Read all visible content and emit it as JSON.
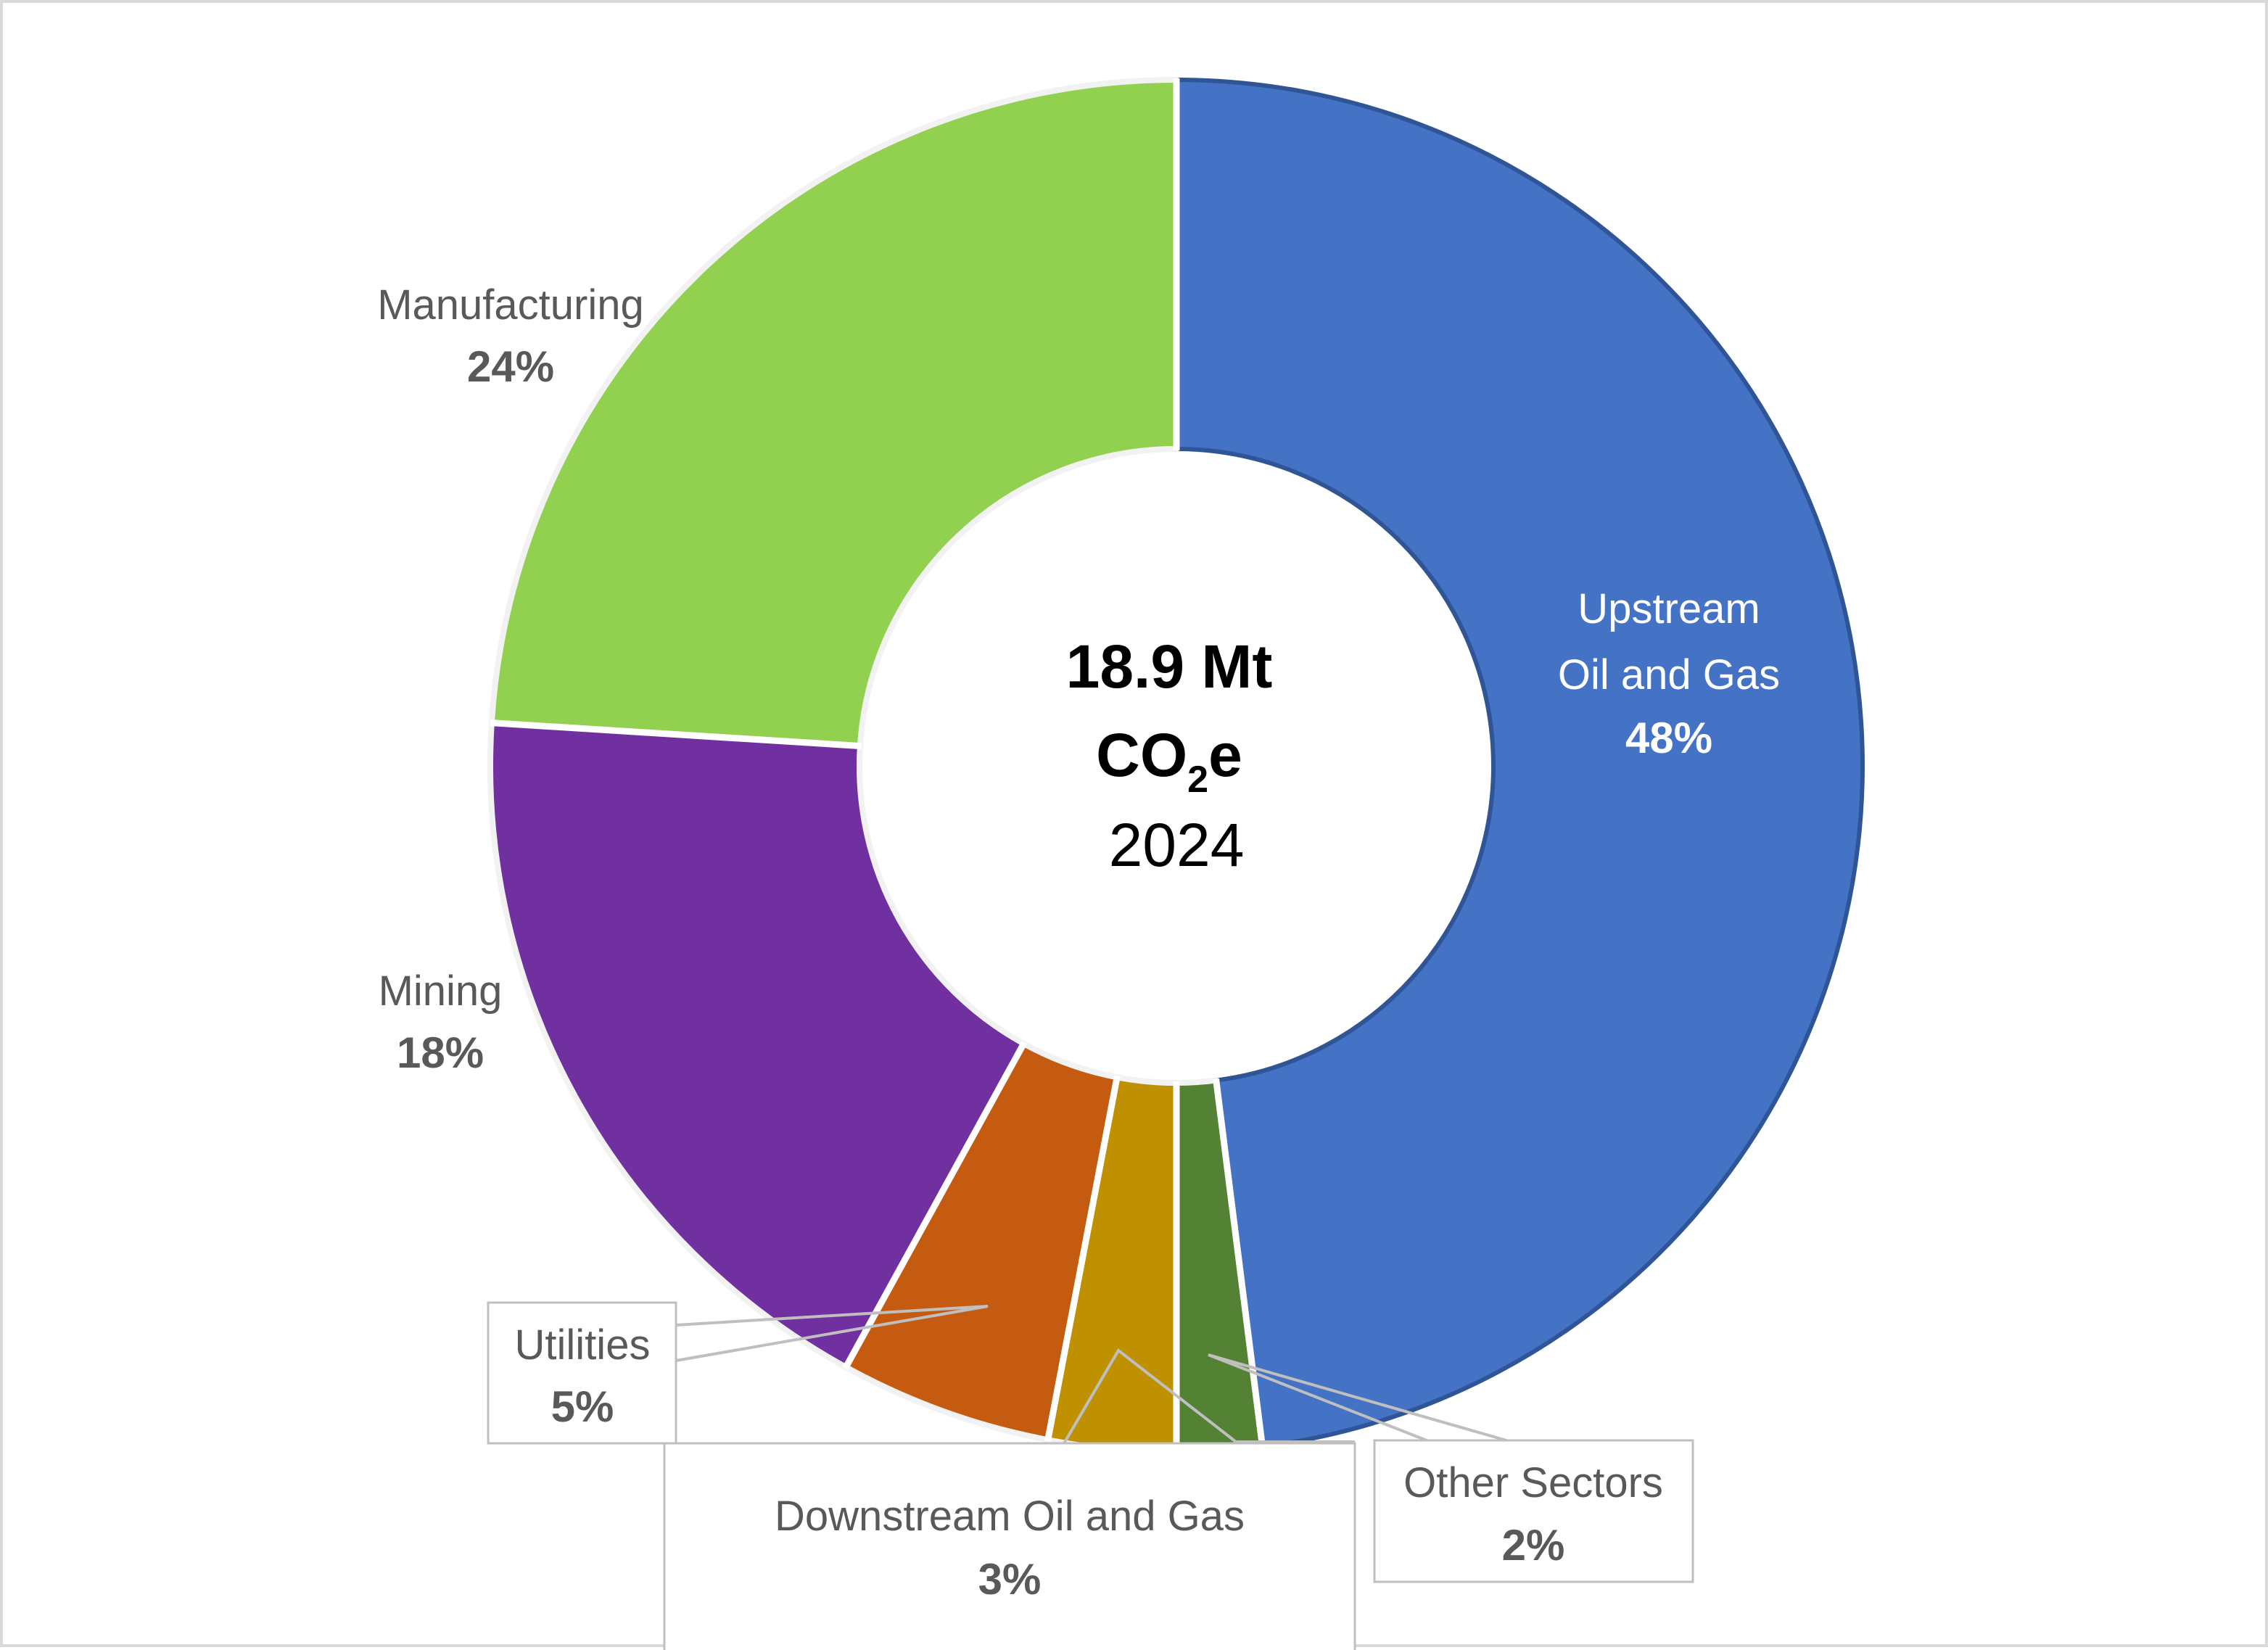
{
  "chart_data": {
    "type": "pie",
    "variant": "doughnut",
    "title": "",
    "center_label": {
      "line1": "18.9 Mt",
      "line2_main": "CO",
      "line2_sub": "2",
      "line2_end": "e",
      "line3": "2024"
    },
    "total": "18.9 Mt CO2e",
    "year": "2024",
    "unit": "%",
    "categories": [
      "Upstream Oil and Gas",
      "Other Sectors",
      "Downstream Oil and Gas",
      "Utilities",
      "Mining",
      "Manufacturing"
    ],
    "values": [
      48,
      2,
      3,
      5,
      18,
      24
    ],
    "colors": [
      "#4472C4",
      "#548235",
      "#BF9000",
      "#C55A11",
      "#7030A0",
      "#92D050"
    ],
    "start_angle_deg": 0,
    "direction": "clockwise",
    "legend": "none (data labels with callouts)"
  },
  "labels": {
    "upstream": {
      "name_line1": "Upstream",
      "name_line2": "Oil and Gas",
      "pct": "48%"
    },
    "other": {
      "name": "Other Sectors",
      "pct": "2%"
    },
    "downstream": {
      "name": "Downstream Oil and Gas",
      "pct": "3%"
    },
    "utilities": {
      "name": "Utilities",
      "pct": "5%"
    },
    "mining": {
      "name": "Mining",
      "pct": "18%"
    },
    "manufacturing": {
      "name": "Manufacturing",
      "pct": "24%"
    }
  },
  "center": {
    "line1": "18.9 Mt",
    "co": "CO",
    "sub2": "2",
    "e": "e",
    "year": "2024"
  }
}
